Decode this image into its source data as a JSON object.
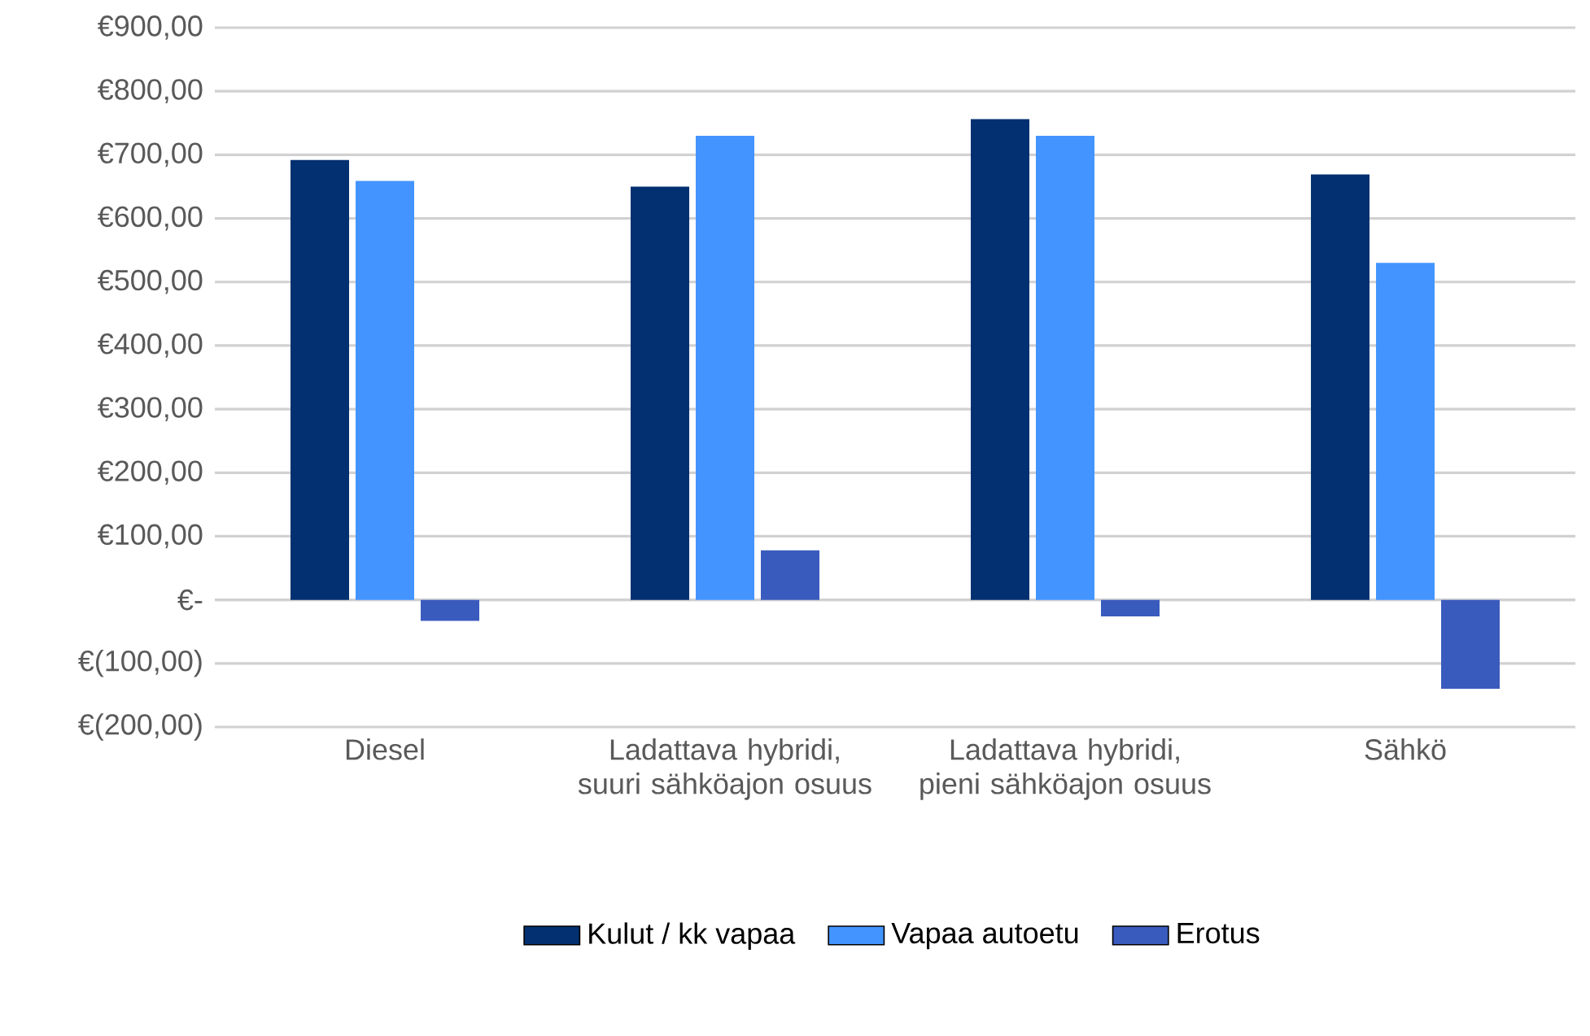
{
  "chart_data": {
    "type": "bar",
    "categories": [
      "Diesel",
      "Ladattava hybridi, suuri sähköajon osuus",
      "Ladattava hybridi, pieni sähköajon osuus",
      "Sähkö"
    ],
    "series": [
      {
        "name": "Kulut / kk vapaa",
        "color": "#033070",
        "values": [
          692,
          650,
          756,
          669
        ]
      },
      {
        "name": "Vapaa autoetu",
        "color": "#4394ff",
        "values": [
          659,
          730,
          730,
          530
        ]
      },
      {
        "name": "Erotus",
        "color": "#3a5bbe",
        "values": [
          -33,
          78,
          -26,
          -140
        ]
      }
    ],
    "ylim": [
      -200,
      900
    ],
    "yticks": [
      {
        "value": -200,
        "label": "€(200,00)"
      },
      {
        "value": -100,
        "label": "€(100,00)"
      },
      {
        "value": 0,
        "label": "€-"
      },
      {
        "value": 100,
        "label": "€100,00"
      },
      {
        "value": 200,
        "label": "€200,00"
      },
      {
        "value": 300,
        "label": "€300,00"
      },
      {
        "value": 400,
        "label": "€400,00"
      },
      {
        "value": 500,
        "label": "€500,00"
      },
      {
        "value": 600,
        "label": "€600,00"
      },
      {
        "value": 700,
        "label": "€700,00"
      },
      {
        "value": 800,
        "label": "€800,00"
      },
      {
        "value": 900,
        "label": "€900,00"
      }
    ],
    "grid": "y",
    "legend": "bottom"
  }
}
